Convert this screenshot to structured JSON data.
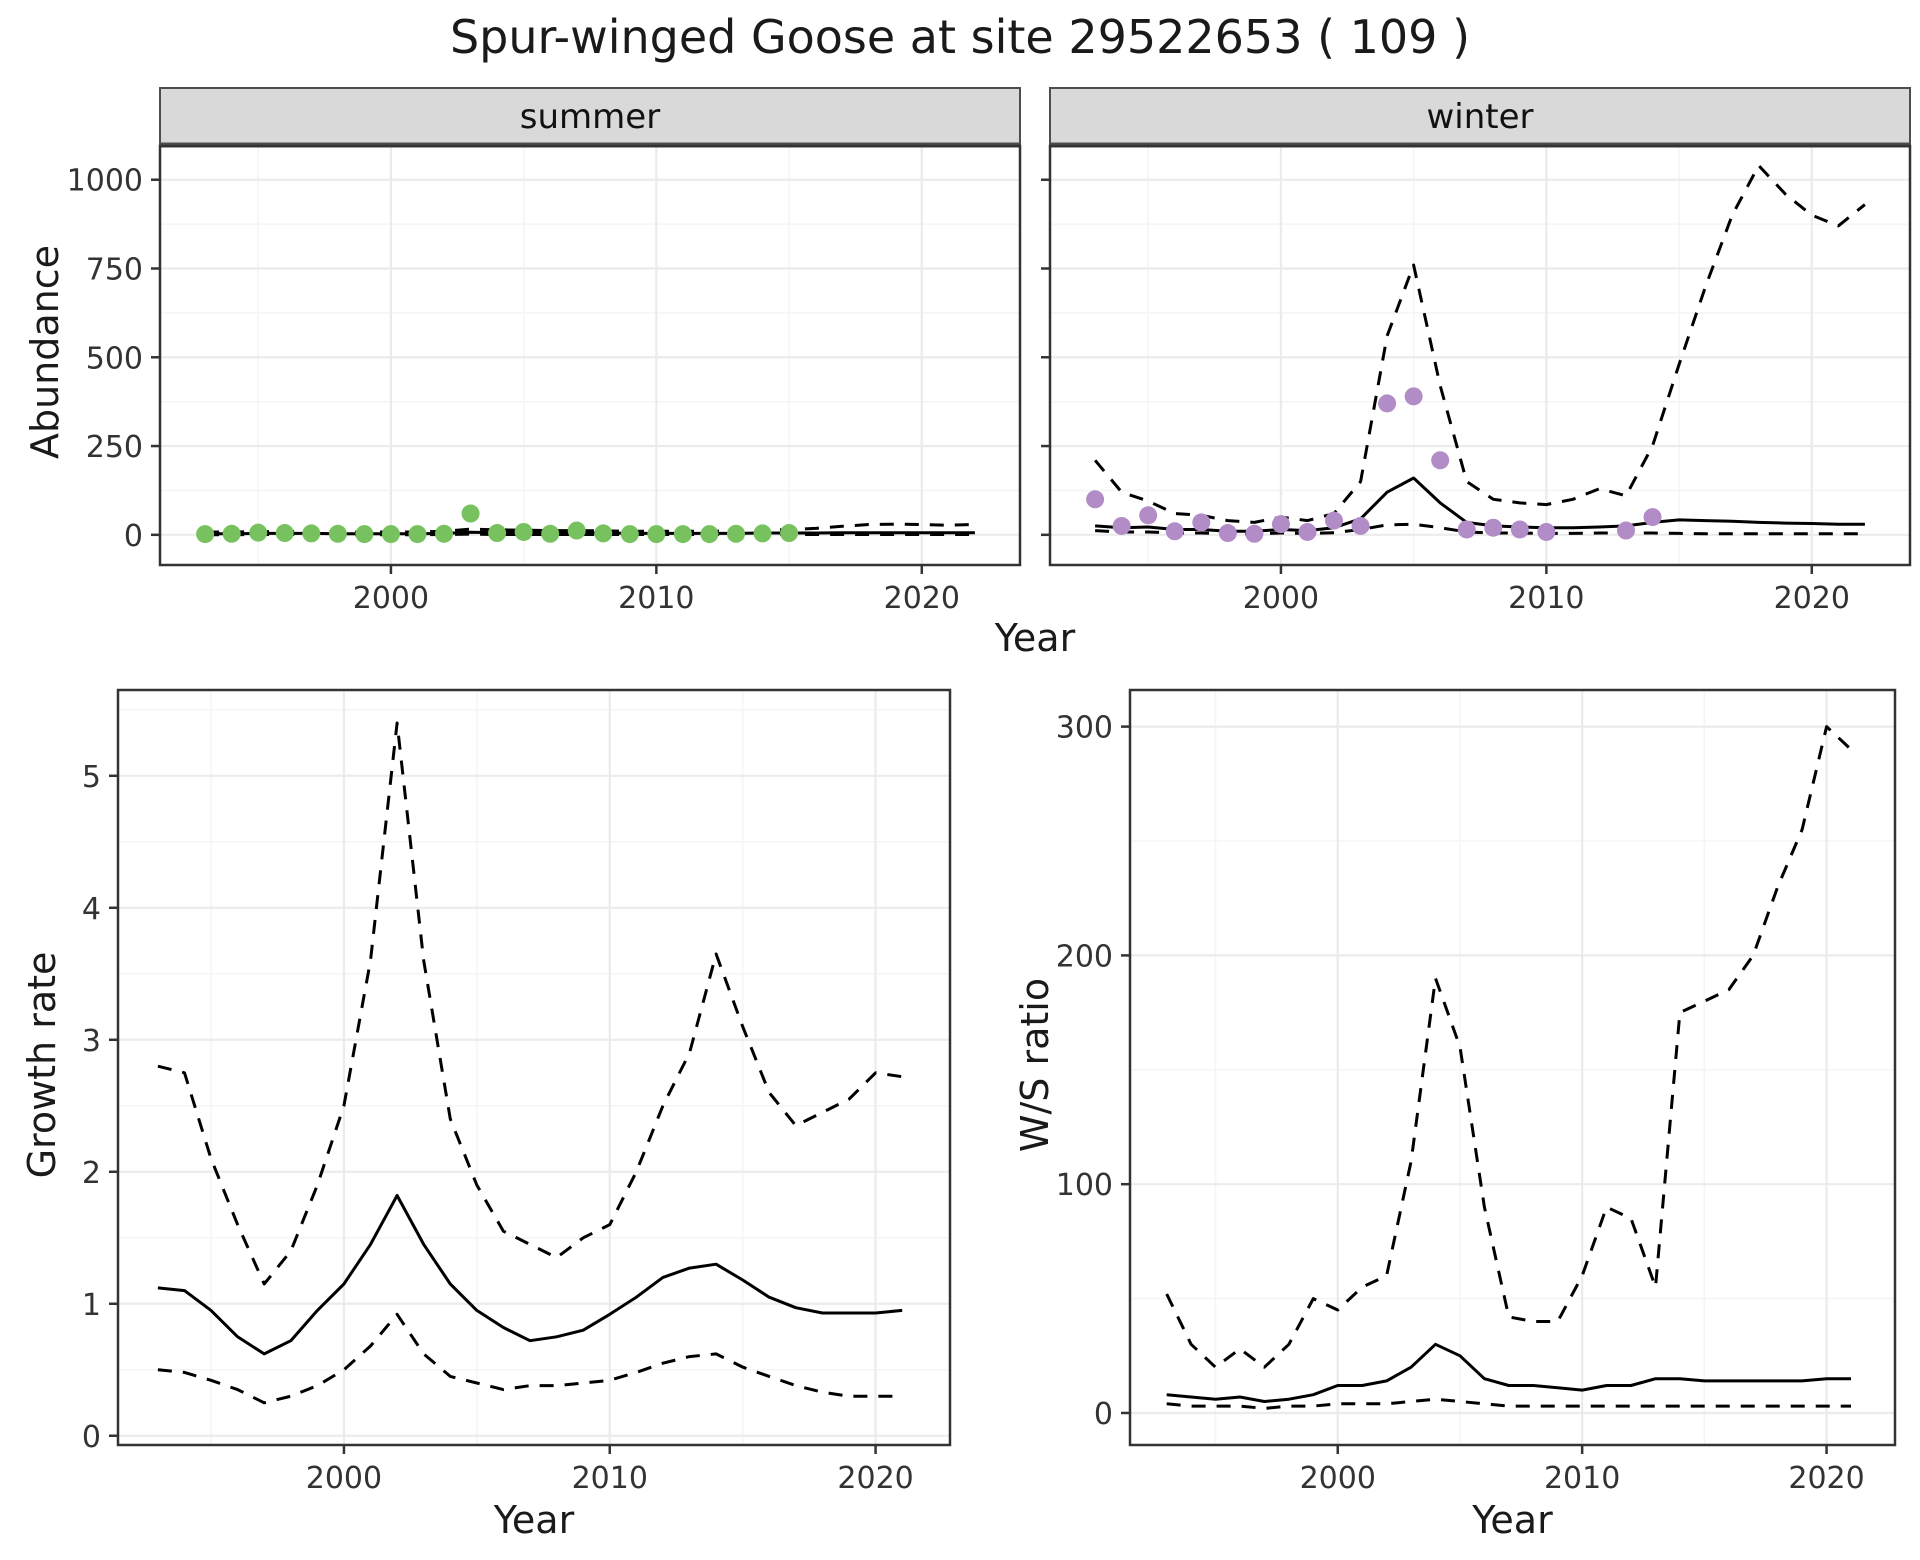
{
  "title": "Spur-winged Goose at site 29522653 ( 109 )",
  "labels": {
    "x_axis": "Year",
    "y_abundance": "Abundance",
    "y_growth": "Growth rate",
    "y_ratio": "W/S ratio"
  },
  "colors": {
    "summer_points": "#77c25f",
    "winter_points": "#b18cc6",
    "line": "#000000",
    "strip_bg": "#d9d9d9",
    "strip_border": "#4d4d4d",
    "panel_border": "#333333",
    "grid_major": "#ebebeb",
    "grid_minor": "#f5f5f5",
    "tick_color": "#333333"
  },
  "chart_data": [
    {
      "type": "line",
      "facet": "summer",
      "panel": "abundance-summer",
      "xlabel": "Year",
      "ylabel": "Abundance",
      "xlim": [
        1991.3,
        2023.7
      ],
      "ylim": [
        -85,
        1095
      ],
      "xticks": [
        2000,
        2010,
        2020
      ],
      "yticks": [
        0,
        250,
        500,
        750,
        1000
      ],
      "grid": true,
      "series": [
        {
          "name": "lower-ci",
          "style": "dashed",
          "x": [
            1993,
            1994,
            1995,
            1996,
            1997,
            1998,
            1999,
            2000,
            2001,
            2002,
            2003,
            2004,
            2005,
            2006,
            2007,
            2008,
            2009,
            2010,
            2011,
            2012,
            2013,
            2014,
            2015,
            2016,
            2017,
            2018,
            2019,
            2020,
            2021,
            2022
          ],
          "y": [
            0,
            0,
            1,
            1,
            1,
            0,
            0,
            0,
            0,
            1,
            2,
            1,
            1,
            1,
            1,
            1,
            1,
            1,
            1,
            1,
            1,
            1,
            1,
            1,
            1,
            1,
            1,
            1,
            1,
            1
          ]
        },
        {
          "name": "upper-ci",
          "style": "dashed",
          "x": [
            1993,
            1994,
            1995,
            1996,
            1997,
            1998,
            1999,
            2000,
            2001,
            2002,
            2003,
            2004,
            2005,
            2006,
            2007,
            2008,
            2009,
            2010,
            2011,
            2012,
            2013,
            2014,
            2015,
            2016,
            2017,
            2018,
            2019,
            2020,
            2021,
            2022
          ],
          "y": [
            8,
            8,
            9,
            9,
            9,
            8,
            8,
            8,
            8,
            10,
            16,
            14,
            13,
            12,
            12,
            11,
            10,
            10,
            10,
            10,
            11,
            12,
            15,
            18,
            24,
            29,
            30,
            29,
            27,
            29
          ]
        },
        {
          "name": "estimate",
          "style": "solid",
          "x": [
            1993,
            1994,
            1995,
            1996,
            1997,
            1998,
            1999,
            2000,
            2001,
            2002,
            2003,
            2004,
            2005,
            2006,
            2007,
            2008,
            2009,
            2010,
            2011,
            2012,
            2013,
            2014,
            2015,
            2016,
            2017,
            2018,
            2019,
            2020,
            2021,
            2022
          ],
          "y": [
            3,
            3,
            4,
            4,
            4,
            3,
            3,
            3,
            3,
            4,
            7,
            6,
            6,
            5,
            5,
            5,
            4,
            4,
            4,
            4,
            4,
            5,
            5,
            5,
            6,
            6,
            6,
            6,
            6,
            6
          ]
        },
        {
          "name": "observed-counts",
          "style": "points",
          "color_key": "summer_points",
          "x": [
            1993,
            1994,
            1995,
            1996,
            1997,
            1998,
            1999,
            2000,
            2001,
            2002,
            2003,
            2004,
            2005,
            2006,
            2007,
            2008,
            2009,
            2010,
            2011,
            2012,
            2013,
            2014,
            2015
          ],
          "y": [
            2,
            3,
            6,
            5,
            4,
            3,
            2,
            2,
            2,
            3,
            60,
            5,
            8,
            3,
            12,
            4,
            2,
            2,
            2,
            2,
            3,
            4,
            5
          ]
        }
      ]
    },
    {
      "type": "line",
      "facet": "winter",
      "panel": "abundance-winter",
      "xlabel": "Year",
      "ylabel": "Abundance",
      "xlim": [
        1991.3,
        2023.7
      ],
      "ylim": [
        -85,
        1095
      ],
      "xticks": [
        2000,
        2010,
        2020
      ],
      "yticks": [
        0,
        250,
        500,
        750,
        1000
      ],
      "grid": true,
      "series": [
        {
          "name": "lower-ci",
          "style": "dashed",
          "x": [
            1993,
            1994,
            1995,
            1996,
            1997,
            1998,
            1999,
            2000,
            2001,
            2002,
            2003,
            2004,
            2005,
            2006,
            2007,
            2008,
            2009,
            2010,
            2011,
            2012,
            2013,
            2014,
            2015,
            2016,
            2017,
            2018,
            2019,
            2020,
            2021,
            2022
          ],
          "y": [
            12,
            8,
            8,
            5,
            5,
            3,
            3,
            5,
            4,
            6,
            15,
            28,
            30,
            20,
            8,
            5,
            5,
            4,
            4,
            5,
            5,
            5,
            4,
            3,
            3,
            3,
            3,
            3,
            3,
            3
          ]
        },
        {
          "name": "upper-ci",
          "style": "dashed",
          "x": [
            1993,
            1994,
            1995,
            1996,
            1997,
            1998,
            1999,
            2000,
            2001,
            2002,
            2003,
            2004,
            2005,
            2006,
            2007,
            2008,
            2009,
            2010,
            2011,
            2012,
            2013,
            2014,
            2015,
            2016,
            2017,
            2018,
            2019,
            2020,
            2021,
            2022
          ],
          "y": [
            210,
            120,
            95,
            60,
            55,
            40,
            35,
            50,
            40,
            60,
            150,
            560,
            760,
            420,
            150,
            100,
            90,
            85,
            100,
            130,
            110,
            250,
            480,
            700,
            900,
            1040,
            960,
            900,
            870,
            930
          ]
        },
        {
          "name": "estimate",
          "style": "solid",
          "x": [
            1993,
            1994,
            1995,
            1996,
            1997,
            1998,
            1999,
            2000,
            2001,
            2002,
            2003,
            2004,
            2005,
            2006,
            2007,
            2008,
            2009,
            2010,
            2011,
            2012,
            2013,
            2014,
            2015,
            2016,
            2017,
            2018,
            2019,
            2020,
            2021,
            2022
          ],
          "y": [
            25,
            20,
            22,
            15,
            15,
            10,
            10,
            15,
            12,
            20,
            45,
            120,
            160,
            90,
            35,
            25,
            22,
            20,
            20,
            22,
            25,
            35,
            42,
            40,
            38,
            35,
            33,
            32,
            30,
            30
          ]
        },
        {
          "name": "observed-counts",
          "style": "points",
          "color_key": "winter_points",
          "x": [
            1993,
            1994,
            1995,
            1996,
            1997,
            1998,
            1999,
            2000,
            2001,
            2002,
            2003,
            2004,
            2005,
            2006,
            2007,
            2008,
            2009,
            2010,
            2013,
            2014
          ],
          "y": [
            100,
            25,
            55,
            10,
            35,
            5,
            3,
            30,
            8,
            40,
            25,
            370,
            390,
            210,
            15,
            20,
            15,
            8,
            12,
            50
          ]
        }
      ]
    },
    {
      "type": "line",
      "facet": null,
      "panel": "growth-rate",
      "xlabel": "Year",
      "ylabel": "Growth rate",
      "xlim": [
        1991.5,
        2022.8
      ],
      "ylim": [
        -0.07,
        5.65
      ],
      "xticks": [
        2000,
        2010,
        2020
      ],
      "yticks": [
        0,
        1,
        2,
        3,
        4,
        5
      ],
      "grid": true,
      "series": [
        {
          "name": "lower-ci",
          "style": "dashed",
          "x": [
            1993,
            1994,
            1995,
            1996,
            1997,
            1998,
            1999,
            2000,
            2001,
            2002,
            2003,
            2004,
            2005,
            2006,
            2007,
            2008,
            2009,
            2010,
            2011,
            2012,
            2013,
            2014,
            2015,
            2016,
            2017,
            2018,
            2019,
            2020,
            2021
          ],
          "y": [
            0.5,
            0.48,
            0.42,
            0.35,
            0.25,
            0.3,
            0.38,
            0.5,
            0.68,
            0.92,
            0.62,
            0.45,
            0.4,
            0.35,
            0.38,
            0.38,
            0.4,
            0.42,
            0.48,
            0.55,
            0.6,
            0.62,
            0.52,
            0.45,
            0.38,
            0.33,
            0.3,
            0.3,
            0.3
          ]
        },
        {
          "name": "upper-ci",
          "style": "dashed",
          "x": [
            1993,
            1994,
            1995,
            1996,
            1997,
            1998,
            1999,
            2000,
            2001,
            2002,
            2003,
            2004,
            2005,
            2006,
            2007,
            2008,
            2009,
            2010,
            2011,
            2012,
            2013,
            2014,
            2015,
            2016,
            2017,
            2018,
            2019,
            2020,
            2021
          ],
          "y": [
            2.8,
            2.75,
            2.1,
            1.6,
            1.15,
            1.4,
            1.9,
            2.5,
            3.6,
            5.4,
            3.6,
            2.4,
            1.9,
            1.55,
            1.45,
            1.35,
            1.5,
            1.6,
            2.0,
            2.5,
            2.9,
            3.65,
            3.1,
            2.6,
            2.35,
            2.45,
            2.55,
            2.75,
            2.72
          ]
        },
        {
          "name": "estimate",
          "style": "solid",
          "x": [
            1993,
            1994,
            1995,
            1996,
            1997,
            1998,
            1999,
            2000,
            2001,
            2002,
            2003,
            2004,
            2005,
            2006,
            2007,
            2008,
            2009,
            2010,
            2011,
            2012,
            2013,
            2014,
            2015,
            2016,
            2017,
            2018,
            2019,
            2020,
            2021
          ],
          "y": [
            1.12,
            1.1,
            0.95,
            0.75,
            0.62,
            0.72,
            0.95,
            1.15,
            1.45,
            1.82,
            1.45,
            1.15,
            0.95,
            0.82,
            0.72,
            0.75,
            0.8,
            0.92,
            1.05,
            1.2,
            1.27,
            1.3,
            1.18,
            1.05,
            0.97,
            0.93,
            0.93,
            0.93,
            0.95
          ]
        }
      ]
    },
    {
      "type": "line",
      "facet": null,
      "panel": "ws-ratio",
      "xlabel": "Year",
      "ylabel": "W/S ratio",
      "xlim": [
        1991.5,
        2022.8
      ],
      "ylim": [
        -14,
        316
      ],
      "xticks": [
        2000,
        2010,
        2020
      ],
      "yticks": [
        0,
        100,
        200,
        300
      ],
      "grid": true,
      "series": [
        {
          "name": "lower-ci",
          "style": "dashed",
          "x": [
            1993,
            1994,
            1995,
            1996,
            1997,
            1998,
            1999,
            2000,
            2001,
            2002,
            2003,
            2004,
            2005,
            2006,
            2007,
            2008,
            2009,
            2010,
            2011,
            2012,
            2013,
            2014,
            2015,
            2016,
            2017,
            2018,
            2019,
            2020,
            2021
          ],
          "y": [
            4,
            3,
            3,
            3,
            2,
            3,
            3,
            4,
            4,
            4,
            5,
            6,
            5,
            4,
            3,
            3,
            3,
            3,
            3,
            3,
            3,
            3,
            3,
            3,
            3,
            3,
            3,
            3,
            3
          ]
        },
        {
          "name": "upper-ci",
          "style": "dashed",
          "x": [
            1993,
            1994,
            1995,
            1996,
            1997,
            1998,
            1999,
            2000,
            2001,
            2002,
            2003,
            2004,
            2005,
            2006,
            2007,
            2008,
            2009,
            2010,
            2011,
            2012,
            2013,
            2014,
            2015,
            2016,
            2017,
            2018,
            2019,
            2020,
            2021
          ],
          "y": [
            52,
            30,
            20,
            28,
            20,
            30,
            50,
            45,
            55,
            60,
            110,
            190,
            160,
            90,
            42,
            40,
            40,
            60,
            90,
            85,
            55,
            175,
            180,
            185,
            200,
            230,
            255,
            300,
            290
          ]
        },
        {
          "name": "estimate",
          "style": "solid",
          "x": [
            1993,
            1994,
            1995,
            1996,
            1997,
            1998,
            1999,
            2000,
            2001,
            2002,
            2003,
            2004,
            2005,
            2006,
            2007,
            2008,
            2009,
            2010,
            2011,
            2012,
            2013,
            2014,
            2015,
            2016,
            2017,
            2018,
            2019,
            2020,
            2021
          ],
          "y": [
            8,
            7,
            6,
            7,
            5,
            6,
            8,
            12,
            12,
            14,
            20,
            30,
            25,
            15,
            12,
            12,
            11,
            10,
            12,
            12,
            15,
            15,
            14,
            14,
            14,
            14,
            14,
            15,
            15
          ]
        }
      ]
    }
  ]
}
